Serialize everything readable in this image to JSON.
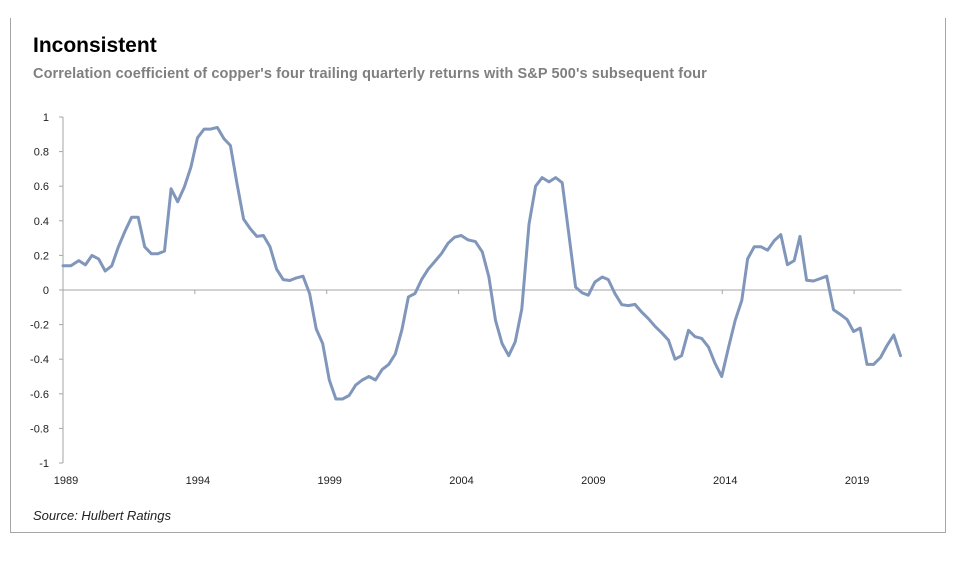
{
  "chart_data": {
    "type": "line",
    "title": "Inconsistent",
    "subtitle": "Correlation coefficient of copper's four trailing quarterly returns with S&P 500's subsequent four",
    "source": "Source: Hulbert Ratings",
    "xlabel": "",
    "ylabel": "",
    "xlim": [
      1989,
      2020.8
    ],
    "ylim": [
      -1,
      1
    ],
    "x_ticks": [
      "1989",
      "1994",
      "1999",
      "2004",
      "2009",
      "2014",
      "2019"
    ],
    "y_ticks": [
      "1",
      "0.8",
      "0.6",
      "0.4",
      "0.2",
      "0",
      "-0.2",
      "-0.4",
      "-0.6",
      "-0.8",
      "-1"
    ],
    "grid": false,
    "line_color": "#8096bb",
    "series": [
      {
        "x": [
          1989.0,
          1989.3,
          1989.6,
          1989.85,
          1990.1,
          1990.35,
          1990.6,
          1990.85,
          1991.1,
          1991.35,
          1991.6,
          1991.85,
          1992.1,
          1992.35,
          1992.6,
          1992.85,
          1993.1,
          1993.35,
          1993.6,
          1993.85,
          1994.1,
          1994.35,
          1994.6,
          1994.85,
          1995.1,
          1995.35,
          1995.6,
          1995.85,
          1996.1,
          1996.35,
          1996.6,
          1996.85,
          1997.1,
          1997.35,
          1997.6,
          1997.85,
          1998.1,
          1998.35,
          1998.6,
          1998.85,
          1999.1,
          1999.35,
          1999.6,
          1999.85,
          2000.1,
          2000.35,
          2000.6,
          2000.85,
          2001.1,
          2001.35,
          2001.6,
          2001.85,
          2002.1,
          2002.35,
          2002.6,
          2002.85,
          2003.1,
          2003.35,
          2003.6,
          2003.85,
          2004.1,
          2004.35,
          2004.64,
          2004.9,
          2005.15,
          2005.4,
          2005.65,
          2005.9,
          2006.15,
          2006.4,
          2006.67,
          2006.92,
          2007.17,
          2007.43,
          2007.68,
          2007.93,
          2008.18,
          2008.44,
          2008.69,
          2008.92,
          2009.17,
          2009.45,
          2009.68,
          2009.93,
          2010.19,
          2010.44,
          2010.69,
          2010.94,
          2011.2,
          2011.45,
          2011.7,
          2011.96,
          2012.21,
          2012.46,
          2012.72,
          2012.97,
          2013.22,
          2013.48,
          2013.73,
          2013.98,
          2014.24,
          2014.49,
          2014.74,
          2014.96,
          2015.21,
          2015.47,
          2015.72,
          2015.97,
          2016.22,
          2016.47,
          2016.73,
          2016.95,
          2017.2,
          2017.46,
          2017.71,
          2017.96,
          2018.22,
          2018.47,
          2018.73,
          2018.98,
          2019.23,
          2019.49,
          2019.74,
          2020.0,
          2020.25,
          2020.5,
          2020.76
        ],
        "values": [
          0.14,
          0.14,
          0.17,
          0.145,
          0.2,
          0.18,
          0.11,
          0.14,
          0.25,
          0.34,
          0.42,
          0.42,
          0.25,
          0.21,
          0.21,
          0.225,
          0.585,
          0.51,
          0.595,
          0.71,
          0.88,
          0.93,
          0.93,
          0.94,
          0.875,
          0.835,
          0.615,
          0.41,
          0.355,
          0.31,
          0.315,
          0.25,
          0.12,
          0.06,
          0.055,
          0.07,
          0.08,
          -0.02,
          -0.225,
          -0.31,
          -0.52,
          -0.63,
          -0.63,
          -0.61,
          -0.55,
          -0.52,
          -0.5,
          -0.52,
          -0.46,
          -0.43,
          -0.37,
          -0.23,
          -0.04,
          -0.02,
          0.06,
          0.12,
          0.165,
          0.21,
          0.27,
          0.305,
          0.315,
          0.29,
          0.28,
          0.22,
          0.075,
          -0.175,
          -0.31,
          -0.38,
          -0.3,
          -0.11,
          0.38,
          0.6,
          0.65,
          0.625,
          0.65,
          0.62,
          0.325,
          0.017,
          -0.017,
          -0.03,
          0.046,
          0.075,
          0.06,
          -0.02,
          -0.085,
          -0.09,
          -0.083,
          -0.127,
          -0.166,
          -0.21,
          -0.247,
          -0.29,
          -0.4,
          -0.38,
          -0.233,
          -0.27,
          -0.28,
          -0.33,
          -0.425,
          -0.5,
          -0.33,
          -0.175,
          -0.06,
          0.18,
          0.25,
          0.25,
          0.23,
          0.285,
          0.32,
          0.146,
          0.17,
          0.31,
          0.056,
          0.052,
          0.066,
          0.08,
          -0.114,
          -0.14,
          -0.17,
          -0.24,
          -0.22,
          -0.43,
          -0.43,
          -0.39,
          -0.32,
          -0.26,
          -0.38
        ]
      }
    ]
  }
}
